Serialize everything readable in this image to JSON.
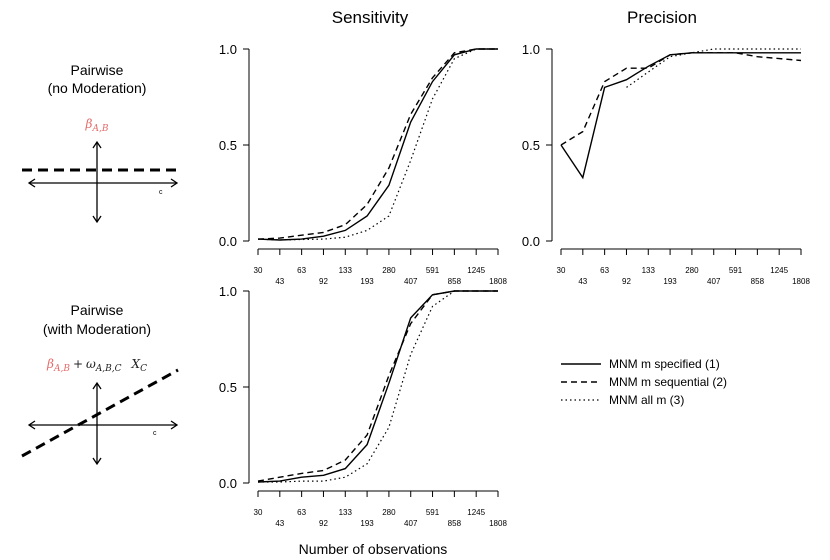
{
  "column_titles": {
    "sensitivity": "Sensitivity",
    "precision": "Precision"
  },
  "rows": [
    {
      "title_line1": "Pairwise",
      "title_line2": "(no Moderation)",
      "formula": {
        "term1": "β",
        "term1_sub": "A,B"
      },
      "axis_tick_label": "c"
    },
    {
      "title_line1": "Pairwise",
      "title_line2": "(with Moderation)",
      "formula": {
        "term1": "β",
        "term1_sub": "A,B",
        "plus": "+",
        "omega": "ω",
        "omega_sub": "A,B,C",
        "x": "X",
        "x_sub": "C"
      },
      "axis_tick_label": "c"
    }
  ],
  "x_label": "Number of observations",
  "legend": [
    {
      "label": "MNM m specified (1)",
      "style": "solid"
    },
    {
      "label": "MNM m sequential (2)",
      "style": "dashed"
    },
    {
      "label": "MNM all m (3)",
      "style": "dotted"
    }
  ],
  "colors": {
    "beta": "#e46a6a",
    "line": "#000000"
  },
  "chart_data": [
    {
      "id": "sens-top",
      "type": "line",
      "title": "Sensitivity",
      "xlabel": "Number of observations",
      "ylabel": "",
      "ylim": [
        0,
        1
      ],
      "yticks": [
        "0.0",
        "0.5",
        "1.0"
      ],
      "x_ticks_upper": [
        "30",
        "63",
        "133",
        "280",
        "591",
        "1245"
      ],
      "x_ticks_lower": [
        "43",
        "92",
        "193",
        "407",
        "858",
        "1808"
      ],
      "categories": [
        "30",
        "43",
        "63",
        "92",
        "133",
        "193",
        "280",
        "407",
        "591",
        "858",
        "1245",
        "1808"
      ],
      "series": [
        {
          "name": "MNM m specified (1)",
          "style": "solid",
          "values": [
            0.01,
            0.005,
            0.01,
            0.025,
            0.055,
            0.13,
            0.29,
            0.62,
            0.83,
            0.97,
            1.0,
            1.0
          ]
        },
        {
          "name": "MNM m sequential (2)",
          "style": "dashed",
          "values": [
            0.01,
            0.015,
            0.03,
            0.045,
            0.085,
            0.19,
            0.38,
            0.66,
            0.85,
            0.98,
            1.0,
            1.0
          ]
        },
        {
          "name": "MNM all m (3)",
          "style": "dotted",
          "values": [
            0.01,
            0.005,
            0.008,
            0.01,
            0.02,
            0.055,
            0.13,
            0.42,
            0.74,
            0.95,
            1.0,
            1.0
          ]
        }
      ]
    },
    {
      "id": "prec-top",
      "type": "line",
      "title": "Precision",
      "ylim": [
        0,
        1
      ],
      "yticks": [
        "0.0",
        "0.5",
        "1.0"
      ],
      "x_ticks_upper": [
        "30",
        "63",
        "133",
        "280",
        "591",
        "1245"
      ],
      "x_ticks_lower": [
        "43",
        "92",
        "193",
        "407",
        "858",
        "1808"
      ],
      "categories": [
        "30",
        "43",
        "63",
        "92",
        "133",
        "193",
        "280",
        "407",
        "591",
        "858",
        "1245",
        "1808"
      ],
      "series": [
        {
          "name": "MNM m specified (1)",
          "style": "solid",
          "values": [
            0.5,
            0.33,
            0.8,
            0.84,
            0.91,
            0.97,
            0.98,
            0.98,
            0.98,
            0.98,
            0.98,
            0.98
          ]
        },
        {
          "name": "MNM m sequential (2)",
          "style": "dashed",
          "values": [
            0.5,
            0.57,
            0.83,
            0.9,
            0.9,
            0.97,
            0.98,
            0.98,
            0.98,
            0.96,
            0.95,
            0.94
          ]
        },
        {
          "name": "MNM all m (3)",
          "style": "dotted",
          "values": [
            null,
            null,
            null,
            0.8,
            0.88,
            0.96,
            0.98,
            1.0,
            1.0,
            1.0,
            1.0,
            1.0
          ]
        }
      ]
    },
    {
      "id": "sens-bottom",
      "type": "line",
      "title": "",
      "ylim": [
        0,
        1
      ],
      "yticks": [
        "0.0",
        "0.5",
        "1.0"
      ],
      "x_ticks_upper": [
        "30",
        "63",
        "133",
        "280",
        "591",
        "1245"
      ],
      "x_ticks_lower": [
        "43",
        "92",
        "193",
        "407",
        "858",
        "1808"
      ],
      "categories": [
        "30",
        "43",
        "63",
        "92",
        "133",
        "193",
        "280",
        "407",
        "591",
        "858",
        "1245",
        "1808"
      ],
      "series": [
        {
          "name": "MNM m specified (1)",
          "style": "solid",
          "values": [
            0.005,
            0.01,
            0.03,
            0.04,
            0.075,
            0.2,
            0.52,
            0.86,
            0.98,
            1.0,
            1.0,
            1.0
          ]
        },
        {
          "name": "MNM m sequential (2)",
          "style": "dashed",
          "values": [
            0.01,
            0.03,
            0.05,
            0.065,
            0.12,
            0.25,
            0.56,
            0.83,
            0.98,
            1.0,
            1.0,
            1.0
          ]
        },
        {
          "name": "MNM all m (3)",
          "style": "dotted",
          "values": [
            0.005,
            0.005,
            0.01,
            0.01,
            0.03,
            0.1,
            0.29,
            0.67,
            0.92,
            1.0,
            1.0,
            1.0
          ]
        }
      ]
    }
  ]
}
